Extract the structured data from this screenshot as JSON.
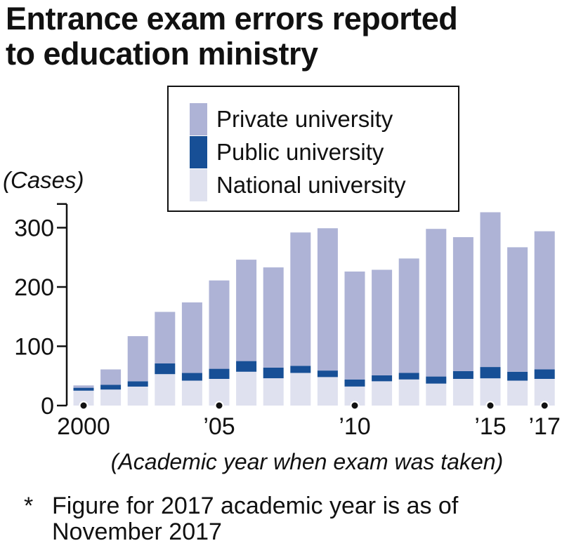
{
  "title_line1": "Entrance exam errors reported",
  "title_line2": "to education ministry",
  "footnote": {
    "marker": "*",
    "line1": "Figure for 2017 academic year is as of",
    "line2": "November 2017"
  },
  "colors": {
    "private": "#aeb3d6",
    "public": "#174f96",
    "national": "#dfe1ef",
    "axis": "#111111"
  },
  "chart_data": {
    "type": "bar",
    "stacked": true,
    "ylabel": "(Cases)",
    "xlabel": "(Academic year when exam was taken)",
    "ylim": [
      0,
      340
    ],
    "yticks": [
      0,
      100,
      200,
      300
    ],
    "x": [
      2000,
      2001,
      2002,
      2003,
      2004,
      2005,
      2006,
      2007,
      2008,
      2009,
      2010,
      2011,
      2012,
      2013,
      2014,
      2015,
      2016,
      2017
    ],
    "x_tick_labels": [
      {
        "year": 2000,
        "label": "2000"
      },
      {
        "year": 2005,
        "label": "’05"
      },
      {
        "year": 2010,
        "label": "’10"
      },
      {
        "year": 2015,
        "label": "’15"
      },
      {
        "year": 2017,
        "label": "’17"
      }
    ],
    "series": [
      {
        "name": "National university",
        "color_key": "national",
        "values": [
          25,
          27,
          32,
          53,
          42,
          45,
          57,
          46,
          55,
          48,
          32,
          41,
          44,
          37,
          45,
          46,
          42,
          45
        ]
      },
      {
        "name": "Public university",
        "color_key": "public",
        "values": [
          5,
          8,
          9,
          18,
          13,
          17,
          18,
          18,
          12,
          11,
          12,
          10,
          11,
          12,
          13,
          19,
          15,
          16
        ]
      },
      {
        "name": "Private university",
        "color_key": "private",
        "values": [
          4,
          26,
          76,
          87,
          119,
          149,
          171,
          169,
          225,
          240,
          182,
          178,
          193,
          249,
          226,
          261,
          210,
          233
        ]
      }
    ],
    "totals": [
      34,
      61,
      117,
      158,
      174,
      211,
      246,
      233,
      292,
      299,
      226,
      229,
      248,
      298,
      284,
      326,
      267,
      294
    ],
    "legend": {
      "placement": "top-right",
      "order": [
        "Private university",
        "Public university",
        "National university"
      ]
    }
  }
}
